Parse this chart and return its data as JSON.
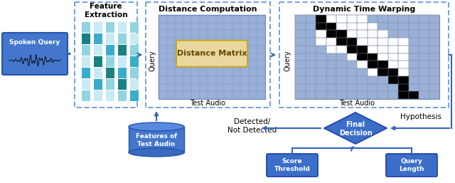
{
  "bg_color": "#ffffff",
  "blue_dark": "#3b6ec8",
  "blue_mid": "#4477cc",
  "blue_light": "#aac0e8",
  "dashed_color": "#6699dd",
  "matrix_bg": "#9ab0d8",
  "dm_bg": "#e8d8a0",
  "dm_border": "#c8a820",
  "dtw_white": "#ffffff",
  "spoken_query_label": "Spoken Query",
  "feature_extraction_label": "Feature\nExtraction",
  "distance_computation_label": "Distance Computation",
  "distance_matrix_label": "Distance Matrix",
  "test_audio_label1": "Test Audio",
  "query_label1": "Query",
  "dtw_label": "Dynamic Time Warping",
  "test_audio_label2": "Test Audio",
  "query_label2": "Query",
  "hypothesis_label": "Hypothesis",
  "features_test_label": "Features of\nTest Audio",
  "detected_label": "Detected/\nNot Detected",
  "final_decision_label": "Final\nDecision",
  "score_threshold_label": "Score\nThreshold",
  "query_length_label": "Query\nLength"
}
